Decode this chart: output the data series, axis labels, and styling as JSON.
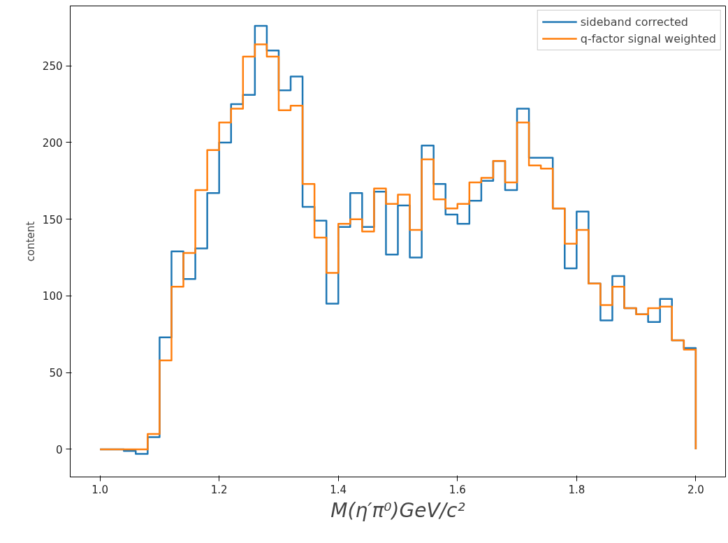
{
  "chart_data": {
    "type": "histogram",
    "xlabel": "M(η′π⁰)GeV/c²",
    "ylabel": "content",
    "bins": [
      1.0,
      1.02,
      1.04,
      1.06,
      1.08,
      1.1,
      1.12,
      1.14,
      1.16,
      1.18,
      1.2,
      1.22,
      1.24,
      1.26,
      1.28,
      1.3,
      1.32,
      1.34,
      1.36,
      1.38,
      1.4,
      1.42,
      1.44,
      1.46,
      1.48,
      1.5,
      1.52,
      1.54,
      1.56,
      1.58,
      1.6,
      1.62,
      1.64,
      1.66,
      1.68,
      1.7,
      1.72,
      1.74,
      1.76,
      1.78,
      1.8,
      1.82,
      1.84,
      1.86,
      1.88,
      1.9,
      1.92,
      1.94,
      1.96,
      1.98,
      2.0
    ],
    "series": [
      {
        "name": "sideband corrected",
        "color": "#1f77b4",
        "values": [
          0,
          0,
          -1,
          -3,
          8,
          73,
          129,
          111,
          131,
          167,
          200,
          225,
          231,
          276,
          260,
          234,
          243,
          158,
          149,
          95,
          145,
          167,
          145,
          168,
          127,
          159,
          125,
          198,
          173,
          153,
          147,
          162,
          175,
          188,
          169,
          222,
          190,
          190,
          157,
          118,
          155,
          108,
          84,
          113,
          92,
          88,
          83,
          98,
          71,
          66
        ]
      },
      {
        "name": "q-factor signal weighted",
        "color": "#ff7f0e",
        "values": [
          0,
          0,
          0,
          0,
          10,
          58,
          106,
          128,
          169,
          195,
          213,
          222,
          256,
          264,
          256,
          221,
          224,
          173,
          138,
          115,
          147,
          150,
          142,
          170,
          160,
          166,
          143,
          189,
          163,
          157,
          160,
          174,
          177,
          188,
          174,
          213,
          185,
          183,
          157,
          134,
          143,
          108,
          94,
          106,
          92,
          88,
          92,
          93,
          71,
          65
        ]
      }
    ],
    "xlim": [
      0.95,
      2.05
    ],
    "ylim": [
      -18,
      289
    ],
    "xticks": [
      {
        "value": 1.0,
        "label": "1.0"
      },
      {
        "value": 1.2,
        "label": "1.2"
      },
      {
        "value": 1.4,
        "label": "1.4"
      },
      {
        "value": 1.6,
        "label": "1.6"
      },
      {
        "value": 1.8,
        "label": "1.8"
      },
      {
        "value": 2.0,
        "label": "2.0"
      }
    ],
    "yticks": [
      0,
      50,
      100,
      150,
      200,
      250
    ],
    "grid": false,
    "legend": "top right"
  }
}
